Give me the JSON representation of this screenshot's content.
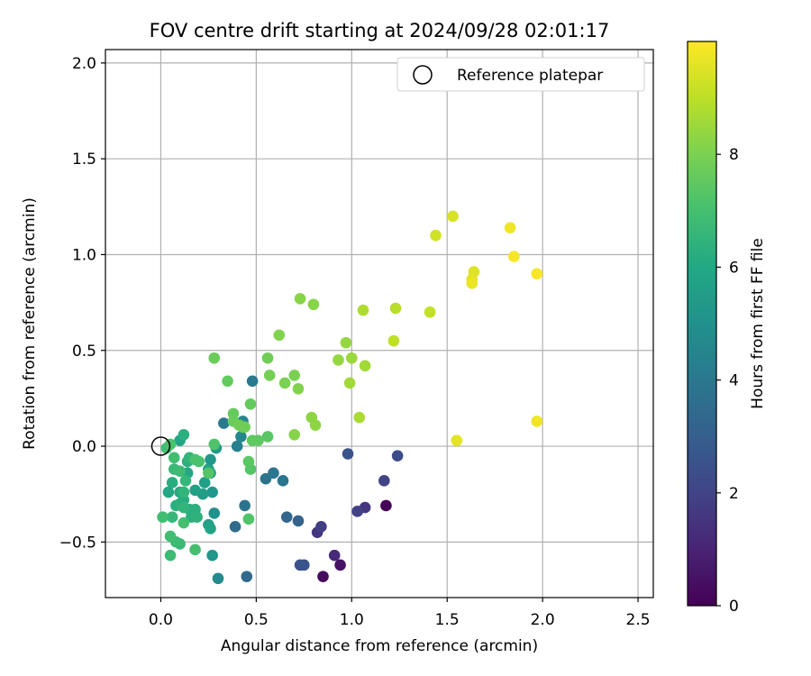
{
  "chart_data": {
    "type": "scatter",
    "title": "FOV centre drift starting at 2024/09/28 02:01:17",
    "xlabel": "Angular distance from reference (arcmin)",
    "ylabel": "Rotation from reference (arcmin)",
    "xlim": [
      -0.29,
      2.58
    ],
    "ylim": [
      -0.79,
      2.07
    ],
    "xticks": [
      0.0,
      0.5,
      1.0,
      1.5,
      2.0,
      2.5
    ],
    "xtick_labels": [
      "0.0",
      "0.5",
      "1.0",
      "1.5",
      "2.0",
      "2.5"
    ],
    "yticks": [
      -0.5,
      0.0,
      0.5,
      1.0,
      1.5,
      2.0
    ],
    "ytick_labels": [
      "−0.5",
      "0.0",
      "0.5",
      "1.0",
      "1.5",
      "2.0"
    ],
    "grid": true,
    "legend": {
      "placement": "top-right",
      "entries": [
        "Reference platepar"
      ]
    },
    "reference_point": {
      "x": 0.0,
      "y": 0.0
    },
    "colorbar": {
      "label": "Hours from first FF file",
      "range": [
        0,
        10
      ],
      "ticks": [
        0,
        2,
        4,
        6,
        8
      ],
      "tick_labels": [
        "0",
        "2",
        "4",
        "6",
        "8"
      ],
      "colormap": "viridis"
    },
    "series": [
      {
        "points": [
          [
            1.18,
            -0.31,
            0.1
          ],
          [
            0.85,
            -0.68,
            0.3
          ],
          [
            0.94,
            -0.62,
            0.5
          ],
          [
            0.91,
            -0.57,
            1.2
          ],
          [
            0.82,
            -0.45,
            1.6
          ],
          [
            0.84,
            -0.42,
            1.8
          ],
          [
            1.07,
            -0.32,
            1.6
          ],
          [
            1.03,
            -0.34,
            1.9
          ],
          [
            1.17,
            -0.18,
            2.0
          ],
          [
            1.24,
            -0.05,
            2.3
          ],
          [
            0.98,
            -0.04,
            2.6
          ],
          [
            0.73,
            -0.62,
            2.5
          ],
          [
            0.75,
            -0.62,
            2.6
          ],
          [
            0.72,
            -0.39,
            3.1
          ],
          [
            0.66,
            -0.37,
            3.3
          ],
          [
            0.45,
            -0.68,
            3.4
          ],
          [
            0.39,
            -0.42,
            3.5
          ],
          [
            0.44,
            -0.31,
            3.8
          ],
          [
            0.55,
            -0.17,
            3.8
          ],
          [
            0.59,
            -0.14,
            3.9
          ],
          [
            0.64,
            -0.18,
            3.9
          ],
          [
            0.48,
            0.34,
            4.0
          ],
          [
            0.33,
            0.12,
            4.1
          ],
          [
            0.4,
            0.0,
            4.3
          ],
          [
            0.42,
            0.05,
            4.6
          ],
          [
            0.43,
            0.13,
            4.5
          ],
          [
            0.3,
            -0.69,
            4.7
          ],
          [
            0.27,
            -0.57,
            5.2
          ],
          [
            0.28,
            -0.35,
            5.0
          ],
          [
            0.27,
            -0.24,
            5.3
          ],
          [
            0.29,
            -0.01,
            5.4
          ],
          [
            0.22,
            -0.25,
            5.5
          ],
          [
            0.23,
            -0.19,
            5.6
          ],
          [
            0.18,
            -0.23,
            5.7
          ],
          [
            0.25,
            -0.12,
            5.8
          ],
          [
            0.26,
            -0.07,
            5.3
          ],
          [
            0.26,
            -0.14,
            5.5
          ],
          [
            0.25,
            -0.41,
            5.6
          ],
          [
            0.26,
            -0.43,
            5.8
          ],
          [
            0.1,
            -0.24,
            6.1
          ],
          [
            0.14,
            -0.14,
            6.0
          ],
          [
            0.15,
            -0.33,
            6.2
          ],
          [
            0.16,
            -0.37,
            6.3
          ],
          [
            0.18,
            -0.33,
            6.3
          ],
          [
            0.19,
            -0.37,
            6.4
          ],
          [
            0.06,
            -0.19,
            6.2
          ],
          [
            0.04,
            -0.24,
            6.0
          ],
          [
            0.08,
            -0.31,
            6.3
          ],
          [
            0.1,
            -0.3,
            6.4
          ],
          [
            0.12,
            -0.28,
            6.2
          ],
          [
            0.12,
            -0.24,
            6.5
          ],
          [
            0.12,
            -0.32,
            6.5
          ],
          [
            0.14,
            -0.08,
            6.3
          ],
          [
            0.15,
            -0.06,
            6.5
          ],
          [
            0.13,
            -0.18,
            6.6
          ],
          [
            0.1,
            0.03,
            5.9
          ],
          [
            0.12,
            0.06,
            6.3
          ],
          [
            0.06,
            -0.37,
            6.6
          ],
          [
            0.07,
            -0.12,
            6.7
          ],
          [
            0.07,
            -0.06,
            6.9
          ],
          [
            0.1,
            -0.13,
            6.8
          ],
          [
            0.1,
            -0.51,
            6.7
          ],
          [
            0.08,
            -0.5,
            6.8
          ],
          [
            0.05,
            -0.47,
            6.9
          ],
          [
            0.05,
            -0.57,
            6.8
          ],
          [
            0.01,
            -0.37,
            6.9
          ],
          [
            0.12,
            -0.4,
            7.0
          ],
          [
            0.18,
            -0.54,
            7.0
          ],
          [
            0.18,
            -0.07,
            7.1
          ],
          [
            0.2,
            -0.08,
            7.1
          ],
          [
            0.03,
            -0.01,
            6.9
          ],
          [
            0.05,
            0.01,
            7.1
          ],
          [
            0.28,
            0.01,
            7.2
          ],
          [
            0.25,
            -0.14,
            7.3
          ],
          [
            0.46,
            -0.38,
            7.2
          ],
          [
            0.47,
            -0.12,
            7.3
          ],
          [
            0.46,
            -0.08,
            7.4
          ],
          [
            0.48,
            0.03,
            7.5
          ],
          [
            0.51,
            0.03,
            7.5
          ],
          [
            0.56,
            0.05,
            7.4
          ],
          [
            0.47,
            0.22,
            7.6
          ],
          [
            0.35,
            0.34,
            7.6
          ],
          [
            0.28,
            0.46,
            7.7
          ],
          [
            0.38,
            0.17,
            7.6
          ],
          [
            0.38,
            0.13,
            7.7
          ],
          [
            0.41,
            0.11,
            7.8
          ],
          [
            0.43,
            0.1,
            7.8
          ],
          [
            0.44,
            0.1,
            7.8
          ],
          [
            0.56,
            0.46,
            7.8
          ],
          [
            0.57,
            0.37,
            7.9
          ],
          [
            0.65,
            0.33,
            8.0
          ],
          [
            0.7,
            0.37,
            8.0
          ],
          [
            0.72,
            0.3,
            8.1
          ],
          [
            0.62,
            0.58,
            8.1
          ],
          [
            0.73,
            0.77,
            8.2
          ],
          [
            0.8,
            0.74,
            8.2
          ],
          [
            0.7,
            0.06,
            8.2
          ],
          [
            0.79,
            0.15,
            8.3
          ],
          [
            0.81,
            0.11,
            8.3
          ],
          [
            0.93,
            0.45,
            8.4
          ],
          [
            0.97,
            0.54,
            8.4
          ],
          [
            1.0,
            0.46,
            8.5
          ],
          [
            1.07,
            0.42,
            8.6
          ],
          [
            0.99,
            0.33,
            8.6
          ],
          [
            1.04,
            0.15,
            8.7
          ],
          [
            1.06,
            0.71,
            8.8
          ],
          [
            1.23,
            0.72,
            8.9
          ],
          [
            1.22,
            0.55,
            9.0
          ],
          [
            1.41,
            0.7,
            9.1
          ],
          [
            1.44,
            1.1,
            9.3
          ],
          [
            1.53,
            1.2,
            9.4
          ],
          [
            1.64,
            0.91,
            9.5
          ],
          [
            1.63,
            0.87,
            9.6
          ],
          [
            1.63,
            0.85,
            9.7
          ],
          [
            1.83,
            1.14,
            9.8
          ],
          [
            1.85,
            0.99,
            9.9
          ],
          [
            1.97,
            0.9,
            9.9
          ],
          [
            1.97,
            0.13,
            9.8
          ],
          [
            1.55,
            0.03,
            9.6
          ]
        ]
      }
    ]
  }
}
